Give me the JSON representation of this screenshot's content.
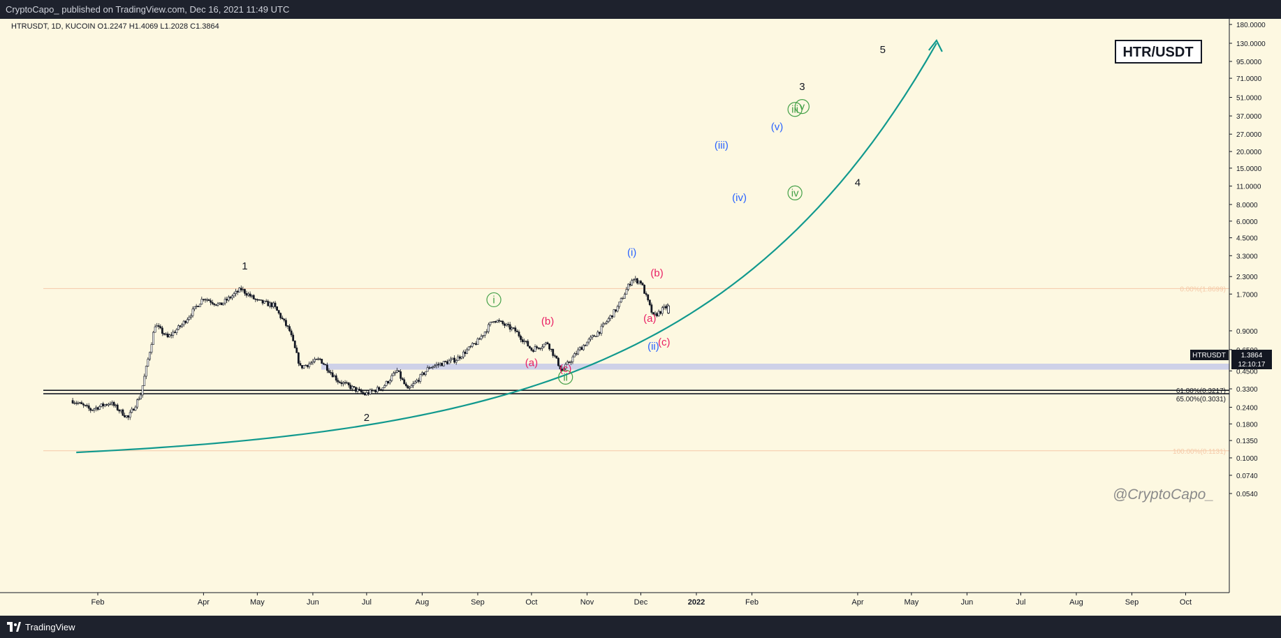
{
  "header": {
    "publisher_line": "CryptoCapo_ published on TradingView.com, Dec 16, 2021 11:49 UTC"
  },
  "legend": {
    "symbol_line": "HTRUSDT, 1D, KUCOIN  O1.2247  H1.4069  L1.2028  C1.3864"
  },
  "badge": {
    "pair": "HTR/USDT"
  },
  "watermark": "@CryptoCapo_",
  "footer": {
    "brand": "TradingView"
  },
  "colors": {
    "chart_bg": "#fdf8e1",
    "curve": "#11998e",
    "black": "#131722",
    "blue": "#2962ff",
    "green": "#43a047",
    "pink": "#e91e63",
    "zone": "#c5cae9",
    "fib_orange": "#f5c9a8"
  },
  "chart_data": {
    "type": "candlestick",
    "scale": "log",
    "title": "HTR/USDT",
    "symbol": "HTRUSDT",
    "timeframe": "1D",
    "exchange": "KUCOIN",
    "ohlc_last": {
      "open": 1.2247,
      "high": 1.4069,
      "low": 1.2028,
      "close": 1.3864
    },
    "last_price_label": "1.3864",
    "countdown_label": "12:10:17",
    "price_ticks": [
      "180.0000",
      "130.0000",
      "95.0000",
      "71.0000",
      "51.0000",
      "37.0000",
      "27.0000",
      "20.0000",
      "15.0000",
      "11.0000",
      "8.0000",
      "6.0000",
      "4.5000",
      "3.3000",
      "2.3000",
      "1.7000",
      "0.9000",
      "0.6500",
      "0.4500",
      "0.3300",
      "0.2400",
      "0.1800",
      "0.1350",
      "0.1000",
      "0.0740",
      "0.0540"
    ],
    "time_ticks": [
      "Feb",
      "Apr",
      "May",
      "Jun",
      "Jul",
      "Aug",
      "Sep",
      "Oct",
      "Nov",
      "Dec",
      "2022",
      "Feb",
      "Apr",
      "May",
      "Jun",
      "Jul",
      "Aug",
      "Sep",
      "Oct"
    ],
    "price_path": [
      [
        "2021-01-18",
        0.27
      ],
      [
        "2021-01-28",
        0.23
      ],
      [
        "2021-02-08",
        0.26
      ],
      [
        "2021-02-18",
        0.2
      ],
      [
        "2021-02-25",
        0.3
      ],
      [
        "2021-03-05",
        1.0
      ],
      [
        "2021-03-12",
        0.8
      ],
      [
        "2021-03-20",
        1.0
      ],
      [
        "2021-04-01",
        1.6
      ],
      [
        "2021-04-10",
        1.4
      ],
      [
        "2021-04-22",
        1.85
      ],
      [
        "2021-05-01",
        1.5
      ],
      [
        "2021-05-10",
        1.4
      ],
      [
        "2021-05-19",
        0.9
      ],
      [
        "2021-05-25",
        0.48
      ],
      [
        "2021-06-05",
        0.55
      ],
      [
        "2021-06-15",
        0.38
      ],
      [
        "2021-06-30",
        0.3
      ],
      [
        "2021-07-10",
        0.34
      ],
      [
        "2021-07-18",
        0.45
      ],
      [
        "2021-07-24",
        0.32
      ],
      [
        "2021-08-05",
        0.48
      ],
      [
        "2021-08-20",
        0.55
      ],
      [
        "2021-09-01",
        0.75
      ],
      [
        "2021-09-10",
        1.1
      ],
      [
        "2021-09-22",
        0.9
      ],
      [
        "2021-10-01",
        0.65
      ],
      [
        "2021-10-10",
        0.73
      ],
      [
        "2021-10-18",
        0.45
      ],
      [
        "2021-10-28",
        0.66
      ],
      [
        "2021-11-08",
        0.9
      ],
      [
        "2021-11-18",
        1.35
      ],
      [
        "2021-11-26",
        2.2
      ],
      [
        "2021-12-01",
        2.1
      ],
      [
        "2021-12-08",
        1.15
      ],
      [
        "2021-12-16",
        1.3864
      ]
    ],
    "fib_levels": [
      {
        "label": "0.00%(1.8699)",
        "price": 1.8699
      },
      {
        "label": "61.80%(0.3217)",
        "price": 0.3217
      },
      {
        "label": "65.00%(0.3031)",
        "price": 0.3031
      },
      {
        "label": "100.00%(0.1131)",
        "price": 0.1131
      }
    ],
    "support_zone": {
      "low": 0.46,
      "high": 0.51
    },
    "projection_curve": {
      "start": [
        "2021-01-20",
        0.11
      ],
      "end": [
        "2022-05-15",
        130
      ]
    },
    "wave_labels": [
      {
        "text": "1",
        "date": "2021-04-24",
        "price": 2.6,
        "color": "black"
      },
      {
        "text": "2",
        "date": "2021-07-01",
        "price": 0.19,
        "color": "black"
      },
      {
        "text": "3",
        "date": "2022-03-01",
        "price": 58,
        "color": "black"
      },
      {
        "text": "4",
        "date": "2022-04-01",
        "price": 11,
        "color": "black"
      },
      {
        "text": "5",
        "date": "2022-04-15",
        "price": 110,
        "color": "black"
      },
      {
        "text": "i",
        "date": "2021-09-10",
        "price": 1.45,
        "color": "green",
        "circle": true
      },
      {
        "text": "ii",
        "date": "2021-10-20",
        "price": 0.38,
        "color": "green",
        "circle": true
      },
      {
        "text": "iii",
        "date": "2022-02-25",
        "price": 39,
        "color": "green",
        "circle": true
      },
      {
        "text": "iv",
        "date": "2022-02-25",
        "price": 9.2,
        "color": "green",
        "circle": true
      },
      {
        "text": "v",
        "date": "2022-03-01",
        "price": 41,
        "color": "green",
        "circle": true
      },
      {
        "text": "(i)",
        "date": "2021-11-26",
        "price": 3.3,
        "color": "blue"
      },
      {
        "text": "(ii)",
        "date": "2021-12-08",
        "price": 0.65,
        "color": "blue"
      },
      {
        "text": "(iii)",
        "date": "2022-01-15",
        "price": 21,
        "color": "blue"
      },
      {
        "text": "(iv)",
        "date": "2022-01-25",
        "price": 8.5,
        "color": "blue"
      },
      {
        "text": "(v)",
        "date": "2022-02-15",
        "price": 29,
        "color": "blue"
      },
      {
        "text": "(a)",
        "date": "2021-10-01",
        "price": 0.49,
        "color": "pink"
      },
      {
        "text": "(b)",
        "date": "2021-10-10",
        "price": 1.0,
        "color": "pink"
      },
      {
        "text": "(c)",
        "date": "2021-10-20",
        "price": 0.44,
        "color": "pink"
      },
      {
        "text": "(a)",
        "date": "2021-12-06",
        "price": 1.05,
        "color": "pink"
      },
      {
        "text": "(b)",
        "date": "2021-12-10",
        "price": 2.3,
        "color": "pink"
      },
      {
        "text": "(c)",
        "date": "2021-12-14",
        "price": 0.7,
        "color": "pink"
      }
    ]
  }
}
